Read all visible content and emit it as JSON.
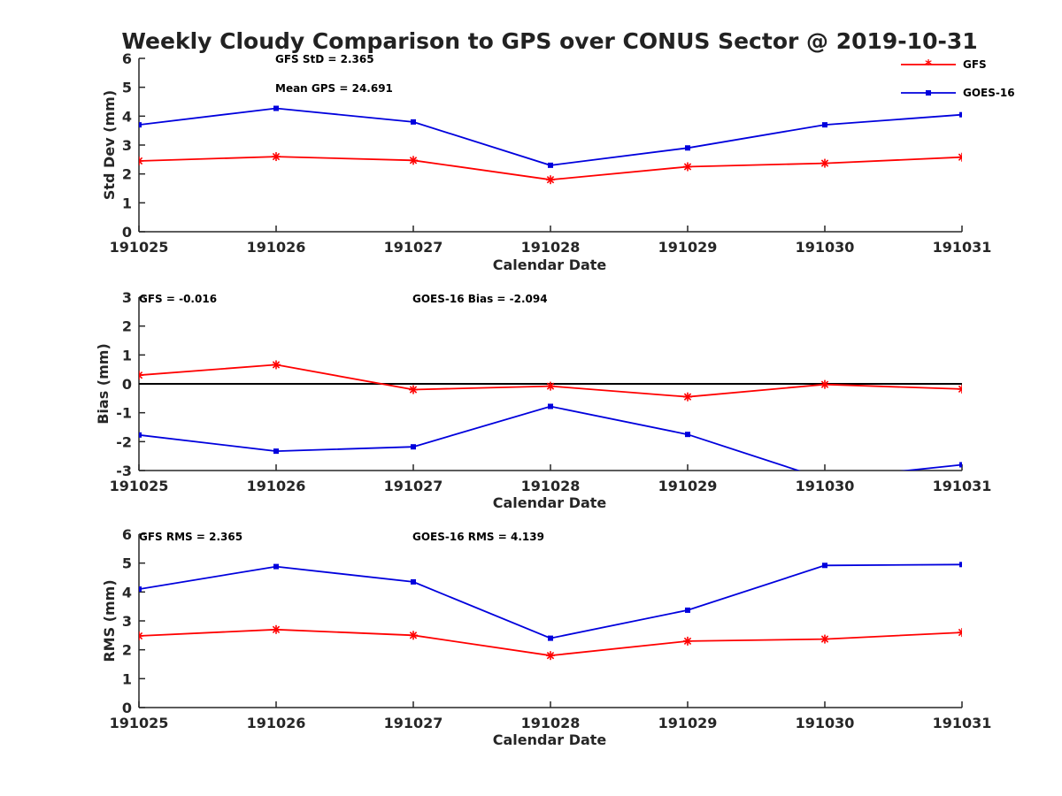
{
  "figure": {
    "title": "Weekly Cloudy Comparison to GPS over CONUS Sector @ 2019-10-31"
  },
  "colors": {
    "gfs": "#ff0000",
    "goes": "#0000dd",
    "axis": "#262626",
    "zero_line": "#000000"
  },
  "legend": {
    "placement": "top-right",
    "items": [
      {
        "label": "GFS",
        "marker": "asterisk",
        "color": "#ff0000"
      },
      {
        "label": "GOES-16",
        "marker": "square",
        "color": "#0000dd"
      }
    ]
  },
  "chart_data": [
    {
      "type": "line",
      "id": "stddev",
      "xlabel": "Calendar Date",
      "ylabel": "Std Dev (mm)",
      "categories": [
        "191025",
        "191026",
        "191027",
        "191028",
        "191029",
        "191030",
        "191031"
      ],
      "ylim": [
        0,
        6
      ],
      "yticks": [
        "0",
        "1",
        "2",
        "3",
        "4",
        "5",
        "6"
      ],
      "zero_line": false,
      "grid": false,
      "annotations": [
        "GFS StD = 2.365",
        "Mean GPS = 24.691"
      ],
      "series": [
        {
          "name": "GFS",
          "values": [
            2.45,
            2.6,
            2.47,
            1.8,
            2.25,
            2.37,
            2.58
          ]
        },
        {
          "name": "GOES-16",
          "values": [
            3.7,
            4.27,
            3.8,
            2.3,
            2.9,
            3.7,
            4.05
          ]
        }
      ]
    },
    {
      "type": "line",
      "id": "bias",
      "xlabel": "Calendar Date",
      "ylabel": "Bias (mm)",
      "categories": [
        "191025",
        "191026",
        "191027",
        "191028",
        "191029",
        "191030",
        "191031"
      ],
      "ylim": [
        -3,
        3
      ],
      "yticks": [
        "-3",
        "-2",
        "-1",
        "0",
        "1",
        "2",
        "3"
      ],
      "zero_line": true,
      "grid": false,
      "annotations": [
        "GFS = -0.016",
        "GOES-16 Bias  = -2.094"
      ],
      "series": [
        {
          "name": "GFS",
          "values": [
            0.3,
            0.66,
            -0.2,
            -0.08,
            -0.45,
            -0.02,
            -0.18
          ]
        },
        {
          "name": "GOES-16",
          "values": [
            -1.77,
            -2.33,
            -2.18,
            -0.78,
            -1.75,
            -3.3,
            -2.8
          ]
        }
      ]
    },
    {
      "type": "line",
      "id": "rms",
      "xlabel": "Calendar Date",
      "ylabel": "RMS (mm)",
      "categories": [
        "191025",
        "191026",
        "191027",
        "191028",
        "191029",
        "191030",
        "191031"
      ],
      "ylim": [
        0,
        6
      ],
      "yticks": [
        "0",
        "1",
        "2",
        "3",
        "4",
        "5",
        "6"
      ],
      "zero_line": false,
      "grid": false,
      "annotations": [
        "GFS RMS = 2.365",
        "GOES-16 RMS = 4.139"
      ],
      "series": [
        {
          "name": "GFS",
          "values": [
            2.48,
            2.7,
            2.5,
            1.8,
            2.3,
            2.37,
            2.6
          ]
        },
        {
          "name": "GOES-16",
          "values": [
            4.1,
            4.88,
            4.35,
            2.4,
            3.37,
            4.92,
            4.95
          ]
        }
      ]
    }
  ]
}
